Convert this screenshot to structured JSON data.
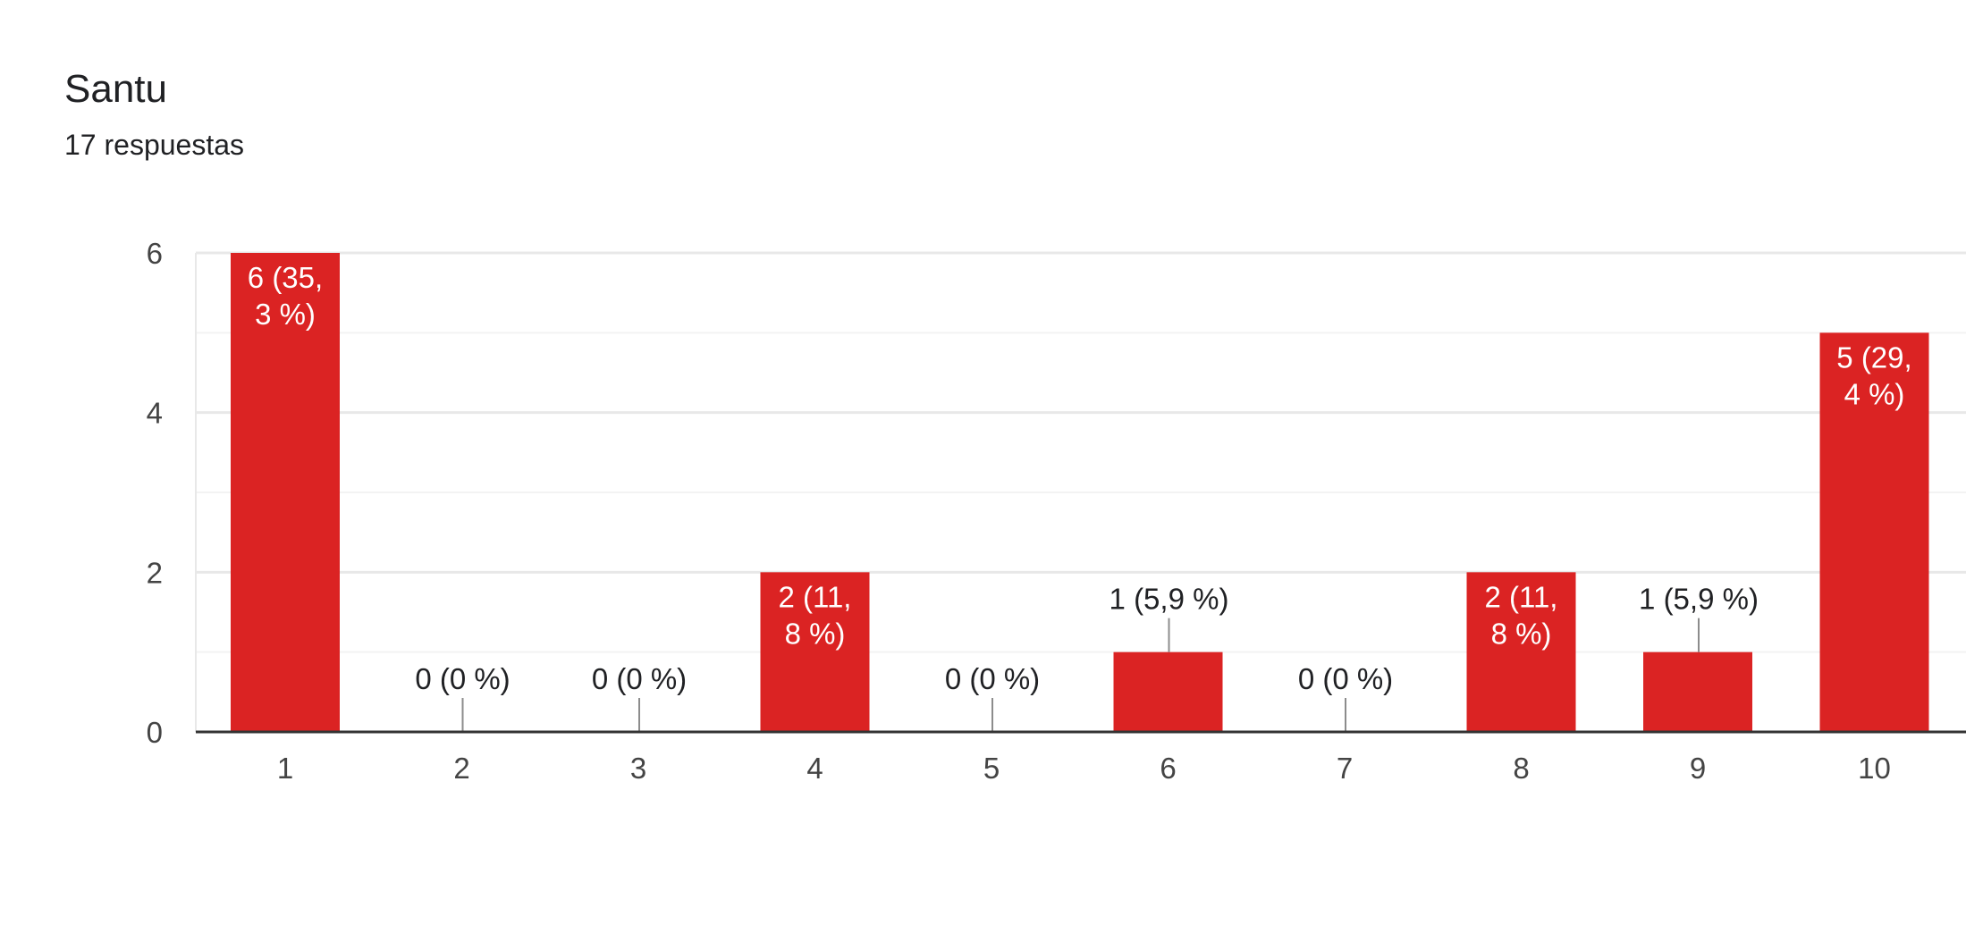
{
  "header": {
    "title": "Santu",
    "responses": "17 respuestas"
  },
  "chart_data": {
    "type": "bar",
    "title": "Santu",
    "subtitle": "17 respuestas",
    "categories": [
      "1",
      "2",
      "3",
      "4",
      "5",
      "6",
      "7",
      "8",
      "9",
      "10"
    ],
    "values": [
      6,
      0,
      0,
      2,
      0,
      1,
      0,
      2,
      1,
      5
    ],
    "data_labels": [
      [
        "6 (35,",
        "3 %)"
      ],
      [
        "0 (0 %)"
      ],
      [
        "0 (0 %)"
      ],
      [
        "2 (11,",
        "8 %)"
      ],
      [
        "0 (0 %)"
      ],
      [
        "1 (5,9 %)"
      ],
      [
        "0 (0 %)"
      ],
      [
        "2 (11,",
        "8 %)"
      ],
      [
        "1 (5,9 %)"
      ],
      [
        "5 (29,",
        "4 %)"
      ]
    ],
    "yticks": [
      "0",
      "2",
      "4",
      "6"
    ],
    "ylim": [
      0,
      6
    ],
    "xlabel": "",
    "ylabel": "",
    "grid": true,
    "colors": {
      "bar": "#db2323",
      "grid_major": "#e8e8e8",
      "grid_minor": "#f3f3f3",
      "axis": "#333333",
      "leader": "#8c8c8c",
      "tick_text": "#444444",
      "label_dark": "#202124",
      "label_light": "#ffffff"
    }
  }
}
